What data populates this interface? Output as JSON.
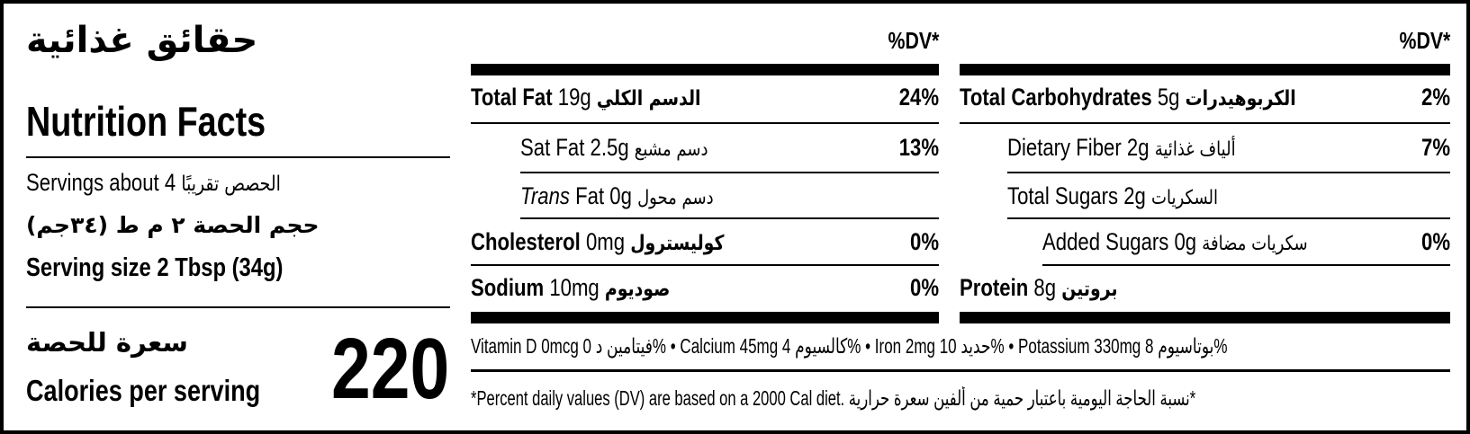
{
  "header": {
    "title_ar": "حقائق غذائية",
    "title_en": "Nutrition Facts",
    "servings_en": "Servings about 4",
    "servings_ar": "الحصص تقريبًا",
    "serving_size_ar": "حجم الحصة ٢ م ط (٣٤جم)",
    "serving_size_en": "Serving size 2 Tbsp (34g)",
    "calories_ar": "سعرة للحصة",
    "calories_en": "Calories per serving",
    "calories_value": "220"
  },
  "left_table": {
    "dv_header": "%DV*",
    "rows": [
      {
        "name_en": "Total Fat",
        "amount": "19g",
        "name_ar": "الدسم الكلي",
        "dv": "24%"
      },
      {
        "name_en": "Sat Fat",
        "amount": "2.5g",
        "name_ar": "دسم مشبع",
        "dv": "13%"
      },
      {
        "name_en_italic": "Trans",
        "name_en": "Fat",
        "amount": "0g",
        "name_ar": "دسم محول",
        "dv": ""
      },
      {
        "name_en": "Cholesterol",
        "amount": "0mg",
        "name_ar": "كوليسترول",
        "dv": "0%"
      },
      {
        "name_en": "Sodium",
        "amount": "10mg",
        "name_ar": "صوديوم",
        "dv": "0%"
      }
    ]
  },
  "right_table": {
    "dv_header": "%DV*",
    "rows": [
      {
        "name_en": "Total Carbohydrates",
        "amount": "5g",
        "name_ar": "الكربوهيدرات",
        "dv": "2%"
      },
      {
        "name_en": "Dietary Fiber",
        "amount": "2g",
        "name_ar": "ألياف غذائية",
        "dv": "7%"
      },
      {
        "name_en": "Total Sugars",
        "amount": "2g",
        "name_ar": "السكريات",
        "dv": ""
      },
      {
        "name_en": "Added Sugars",
        "amount": "0g",
        "name_ar": "سكريات مضافة",
        "dv": "0%"
      },
      {
        "name_en": "Protein",
        "amount": "8g",
        "name_ar": "بروتين",
        "dv": ""
      }
    ]
  },
  "vitamins": "Vitamin D 0mcg فيتامين د 0% • Calcium 45mg كالسيوم 4% • Iron 2mg حديد 10% • Potassium 330mg بوتاسيوم 8%",
  "footnote": "*Percent daily values (DV) are based on a 2000 Cal diet. نسبة الحاجة اليومية باعتبار حمية من ألفين سعرة حرارية*"
}
